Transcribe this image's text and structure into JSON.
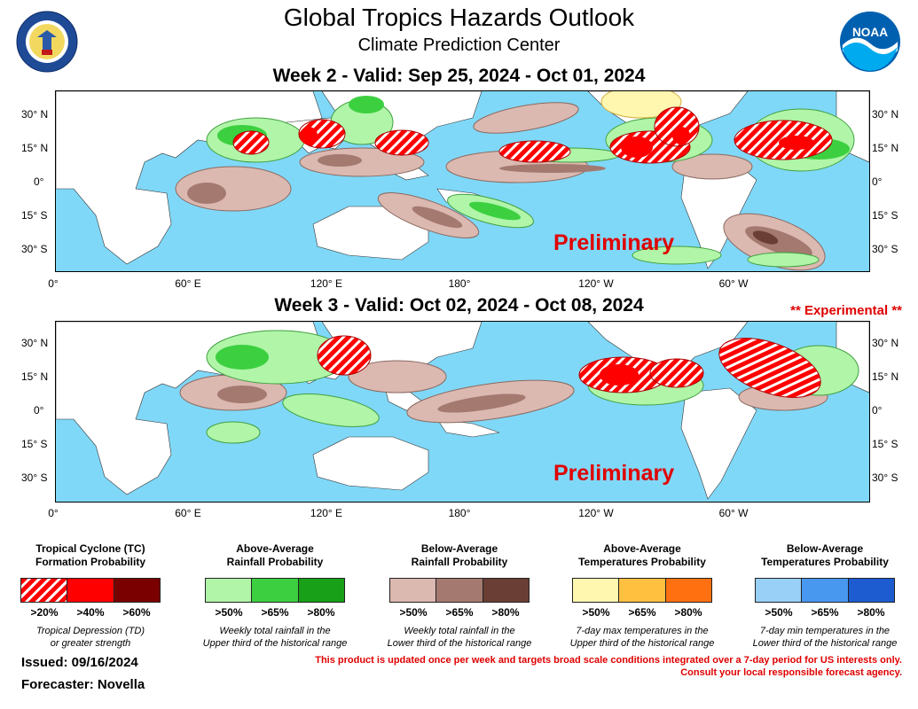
{
  "header": {
    "title": "Global Tropics Hazards Outlook",
    "subtitle": "Climate Prediction Center",
    "logo_left": "department-of-commerce-seal",
    "logo_left_text": "DEPARTMENT OF COMMERCE · UNITED STATES OF AMERICA",
    "logo_right": "noaa-logo",
    "logo_right_text": "NOAA"
  },
  "week2": {
    "title": "Week 2 - Valid: Sep 25, 2024 - Oct 01, 2024",
    "watermark": "Preliminary"
  },
  "week3": {
    "title": "Week 3 - Valid: Oct 02, 2024 - Oct 08, 2024",
    "experimental": "** Experimental **",
    "watermark": "Preliminary"
  },
  "axes": {
    "lat_left": [
      "30° N",
      "15° N",
      "0°",
      "15° S",
      "30° S"
    ],
    "lat_right": [
      "30° N",
      "15° N",
      "0°",
      "15° S",
      "30° S"
    ],
    "lon": [
      "0°",
      "60° E",
      "120° E",
      "180°",
      "120° W",
      "60° W"
    ]
  },
  "legend": {
    "tc": {
      "title_line1": "Tropical Cyclone (TC)",
      "title_line2": "Formation Probability",
      "labels": [
        ">20%",
        ">40%",
        ">60%"
      ],
      "note_line1": "Tropical Depression (TD)",
      "note_line2": "or greater strength",
      "colors": [
        "hatched-red",
        "#ff0000",
        "#7a0000"
      ]
    },
    "above_rain": {
      "title_line1": "Above-Average",
      "title_line2": "Rainfall Probability",
      "labels": [
        ">50%",
        ">65%",
        ">80%"
      ],
      "note_line1": "Weekly total rainfall in the",
      "note_line2": "Upper third of the historical range",
      "colors": [
        "#b0f5a8",
        "#3cd040",
        "#18a018"
      ]
    },
    "below_rain": {
      "title_line1": "Below-Average",
      "title_line2": "Rainfall Probability",
      "labels": [
        ">50%",
        ">65%",
        ">80%"
      ],
      "note_line1": "Weekly total rainfall in the",
      "note_line2": "Lower third of the historical range",
      "colors": [
        "#dbb8b0",
        "#a47a70",
        "#6a3e34"
      ]
    },
    "above_temp": {
      "title_line1": "Above-Average",
      "title_line2": "Temperatures Probability",
      "labels": [
        ">50%",
        ">65%",
        ">80%"
      ],
      "note_line1": "7-day max temperatures in the",
      "note_line2": "Upper third of the historical range",
      "colors": [
        "#fff6b0",
        "#ffc040",
        "#ff7010"
      ]
    },
    "below_temp": {
      "title_line1": "Below-Average",
      "title_line2": "Temperatures Probability",
      "labels": [
        ">50%",
        ">65%",
        ">80%"
      ],
      "note_line1": "7-day min temperatures in the",
      "note_line2": "Lower third of the historical range",
      "colors": [
        "#98d0f8",
        "#4898f0",
        "#1c5cd0"
      ]
    }
  },
  "footer": {
    "issued": "Issued: 09/16/2024",
    "forecaster": "Forecaster: Novella",
    "disclaimer_line1": "This product is updated once per week and targets broad scale conditions integrated over a 7-day period for US interests only.",
    "disclaimer_line2": "Consult your local responsible forecast agency."
  },
  "colors": {
    "ocean": "#80d8f8",
    "land": "#ffffff",
    "accent_red": "#e00000"
  }
}
